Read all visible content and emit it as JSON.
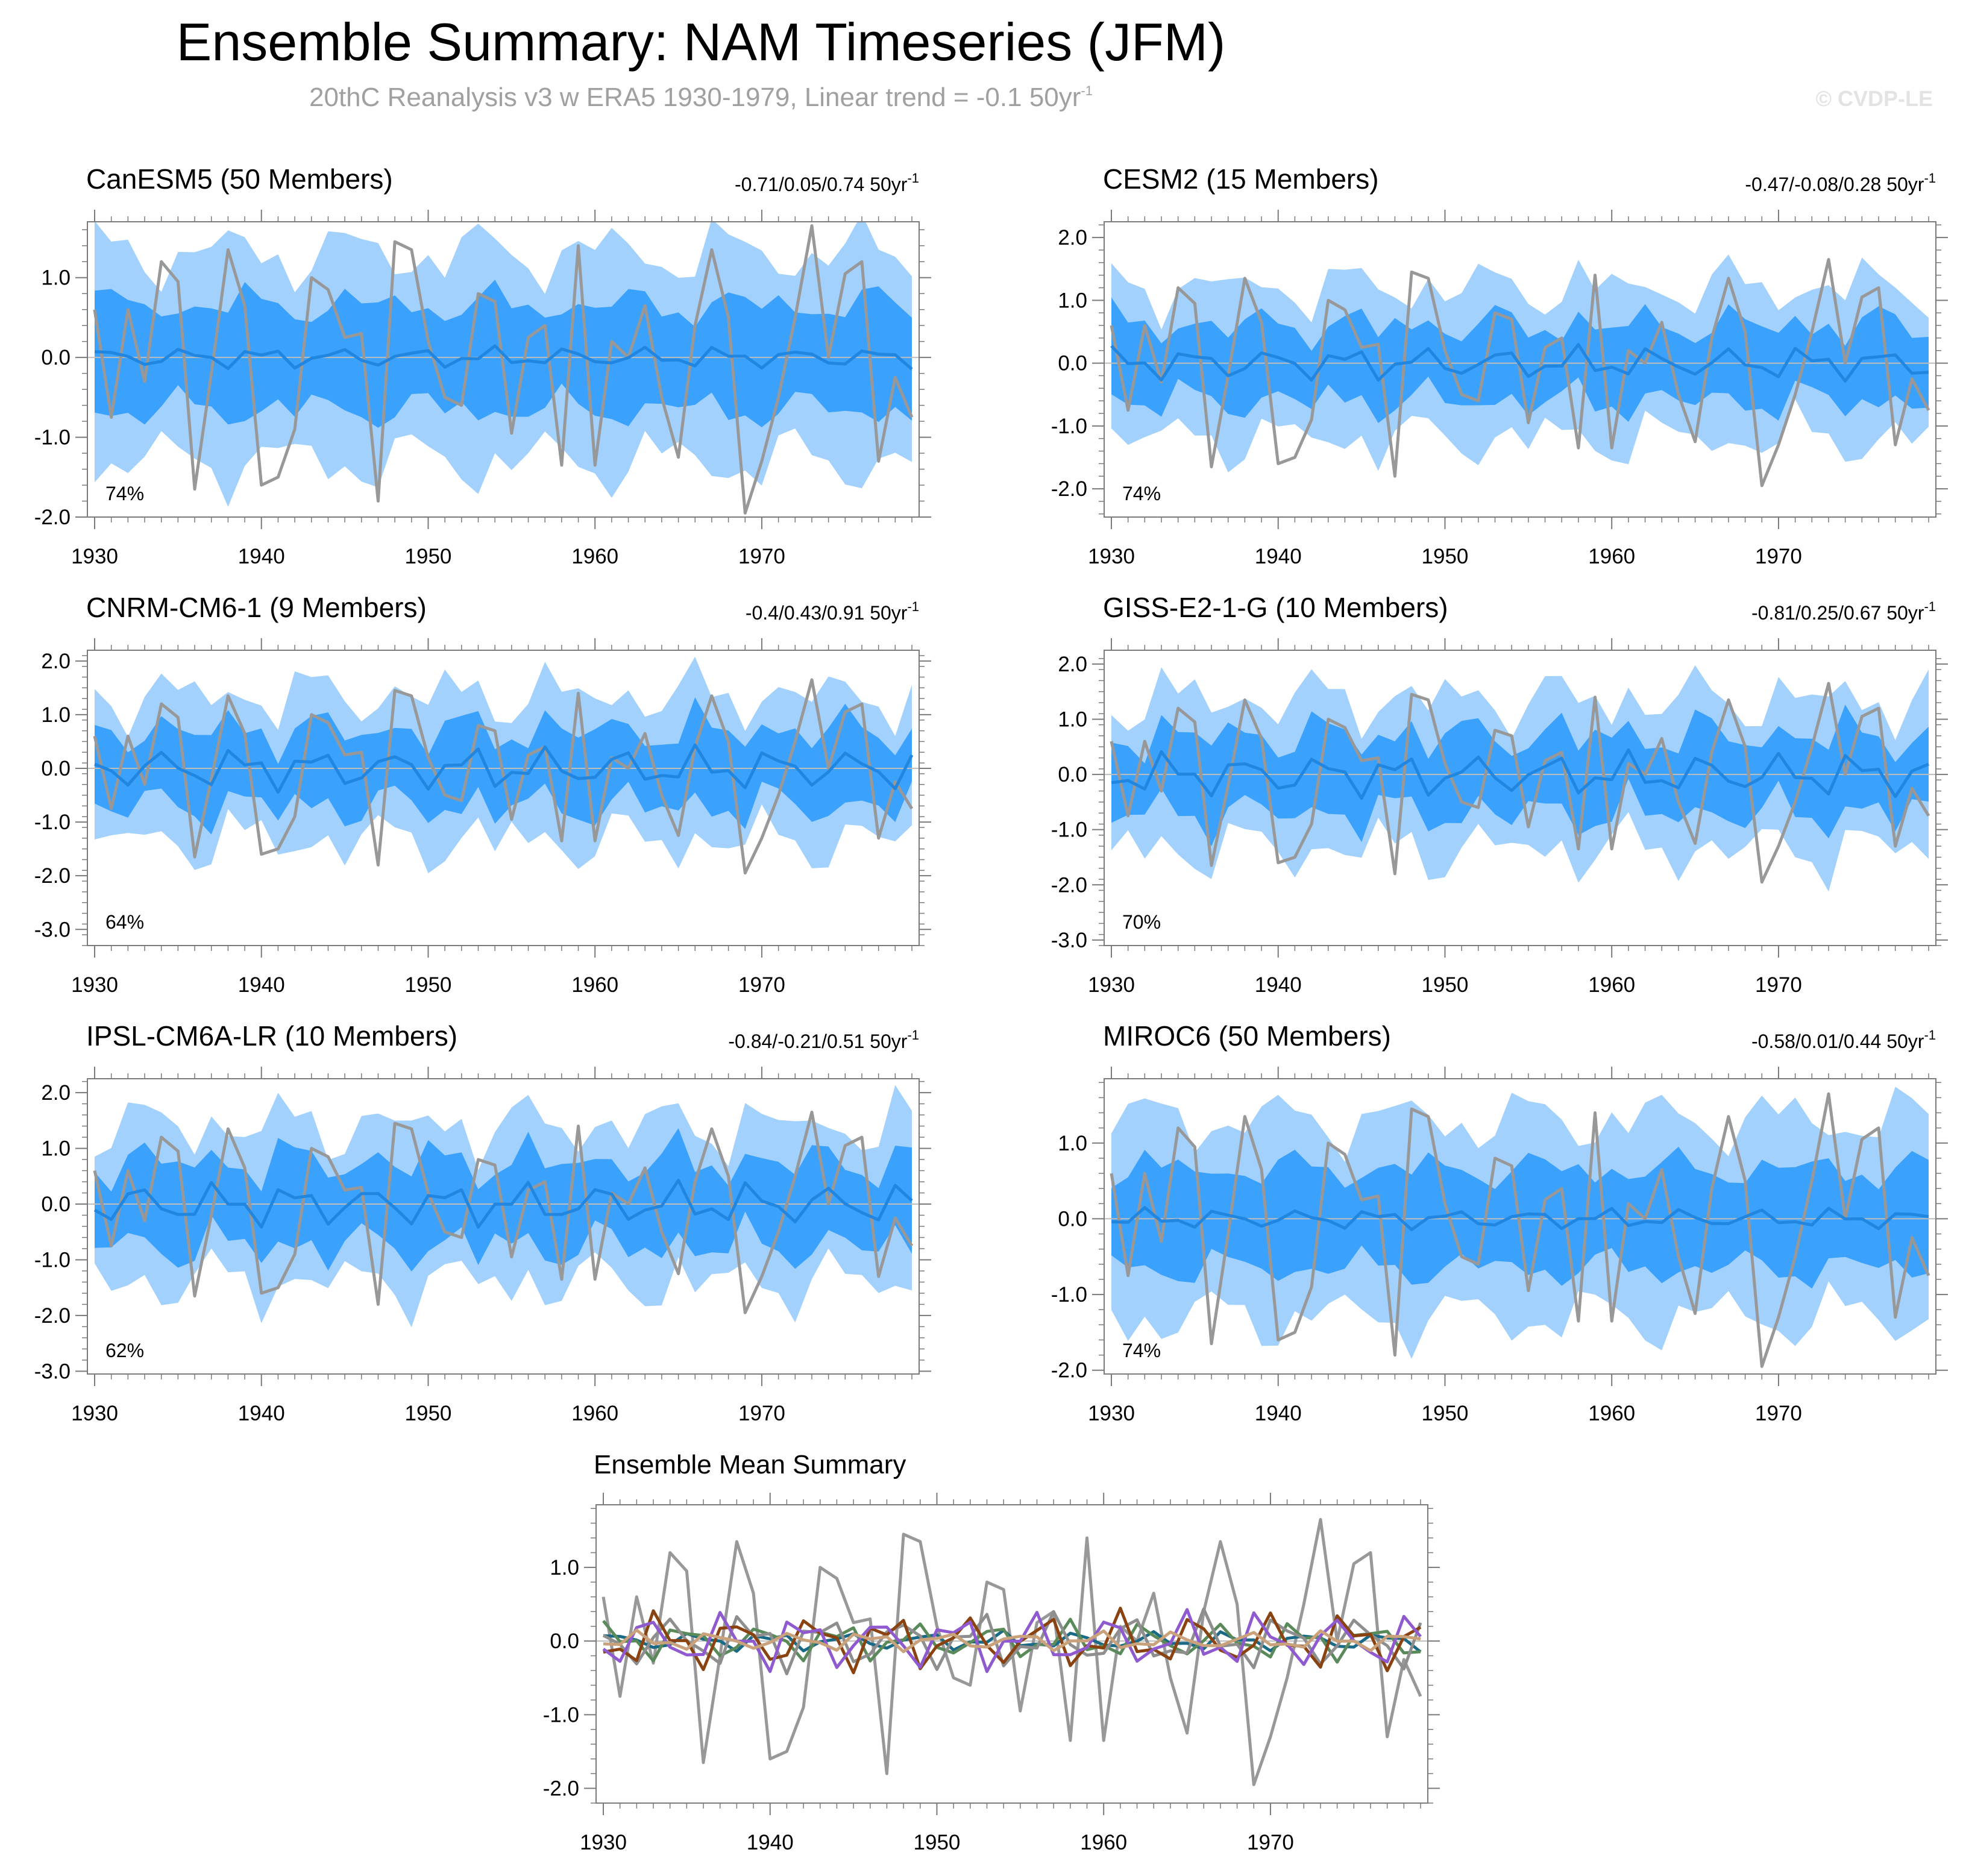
{
  "page": {
    "title": "Ensemble Summary: NAM Timeseries (JFM)",
    "subtitle_main": "20thC Reanalysis v3 w ERA5 1930-1979, Linear trend = -0.1 50yr",
    "subtitle_sup": "-1",
    "watermark": "© CVDP-LE"
  },
  "colors": {
    "band_outer": "#a3d1fd",
    "band_inner": "#3aa1fd",
    "ensemble_mean": "#2186e0",
    "observation": "#989898",
    "zero_line": "#bdbdbd",
    "frame": "#7a7a7a"
  },
  "chart_data": [
    {
      "type": "line",
      "id": "canesm5",
      "title": "CanESM5 (50 Members)",
      "title_color": "#1a6a86",
      "range_text": "-0.71/0.05/0.74 50yr",
      "range_sup": "-1",
      "percent_label": "74%",
      "ylim": [
        -2.0,
        1.7
      ],
      "yticks": [
        -2.0,
        -1.0,
        0.0,
        1.0
      ],
      "ytick_labels": [
        "-2.0",
        "-1.0",
        "0.0",
        "1.0"
      ],
      "xticks": [
        1930,
        1940,
        1950,
        1960,
        1970
      ],
      "xtick_labels": [
        "1930",
        "1940",
        "1950",
        "1960",
        "1970"
      ],
      "x_start": 1930,
      "x_end": 1979,
      "ens_amp": 0.15,
      "band_inner_width": 0.65,
      "band_outer_width": 1.3,
      "phase": 0.4
    },
    {
      "type": "line",
      "id": "cesm2",
      "title": "CESM2 (15 Members)",
      "title_color": "#5a8a5a",
      "range_text": "-0.47/-0.08/0.28 50yr",
      "range_sup": "-1",
      "percent_label": "74%",
      "ylim": [
        -2.45,
        2.25
      ],
      "yticks": [
        -2.0,
        -1.0,
        0.0,
        1.0,
        2.0
      ],
      "ytick_labels": [
        "-2.0",
        "-1.0",
        "0.0",
        "1.0",
        "2.0"
      ],
      "xticks": [
        1930,
        1940,
        1950,
        1960,
        1970
      ],
      "xtick_labels": [
        "1930",
        "1940",
        "1950",
        "1960",
        "1970"
      ],
      "x_start": 1930,
      "x_end": 1979,
      "ens_amp": 0.3,
      "band_inner_width": 0.6,
      "band_outer_width": 1.2,
      "phase": 1.1
    },
    {
      "type": "line",
      "id": "cnrm",
      "title": "CNRM-CM6-1 (9 Members)",
      "title_color": "#8e8e8e",
      "range_text": "-0.4/0.43/0.91 50yr",
      "range_sup": "-1",
      "percent_label": "64%",
      "ylim": [
        -3.3,
        2.2
      ],
      "yticks": [
        -3.0,
        -2.0,
        -1.0,
        0.0,
        1.0,
        2.0
      ],
      "ytick_labels": [
        "-3.0",
        "-2.0",
        "-1.0",
        "0.0",
        "1.0",
        "2.0"
      ],
      "xticks": [
        1930,
        1940,
        1950,
        1960,
        1970
      ],
      "xtick_labels": [
        "1930",
        "1940",
        "1950",
        "1960",
        "1970"
      ],
      "x_start": 1930,
      "x_end": 1979,
      "ens_amp": 0.45,
      "band_inner_width": 0.7,
      "band_outer_width": 1.35,
      "phase": 2.3
    },
    {
      "type": "line",
      "id": "giss",
      "title": "GISS-E2-1-G (10 Members)",
      "title_color": "#8a4210",
      "range_text": "-0.81/0.25/0.67 50yr",
      "range_sup": "-1",
      "percent_label": "70%",
      "ylim": [
        -3.1,
        2.25
      ],
      "yticks": [
        -3.0,
        -2.0,
        -1.0,
        0.0,
        1.0,
        2.0
      ],
      "ytick_labels": [
        "-3.0",
        "-2.0",
        "-1.0",
        "0.0",
        "1.0",
        "2.0"
      ],
      "xticks": [
        1930,
        1940,
        1950,
        1960,
        1970
      ],
      "xtick_labels": [
        "1930",
        "1940",
        "1950",
        "1960",
        "1970"
      ],
      "x_start": 1930,
      "x_end": 1979,
      "ens_amp": 0.45,
      "band_inner_width": 0.7,
      "band_outer_width": 1.35,
      "phase": 3.2
    },
    {
      "type": "line",
      "id": "ipsl",
      "title": "IPSL-CM6A-LR (10 Members)",
      "title_color": "#8f5ad0",
      "range_text": "-0.84/-0.21/0.51 50yr",
      "range_sup": "-1",
      "percent_label": "62%",
      "ylim": [
        -3.05,
        2.25
      ],
      "yticks": [
        -3.0,
        -2.0,
        -1.0,
        0.0,
        1.0,
        2.0
      ],
      "ytick_labels": [
        "-3.0",
        "-2.0",
        "-1.0",
        "0.0",
        "1.0",
        "2.0"
      ],
      "xticks": [
        1930,
        1940,
        1950,
        1960,
        1970
      ],
      "xtick_labels": [
        "1930",
        "1940",
        "1950",
        "1960",
        "1970"
      ],
      "x_start": 1930,
      "x_end": 1979,
      "ens_amp": 0.45,
      "band_inner_width": 0.75,
      "band_outer_width": 1.4,
      "phase": 4.1
    },
    {
      "type": "line",
      "id": "miroc6",
      "title": "MIROC6 (50 Members)",
      "title_color": "#c9a17a",
      "range_text": "-0.58/0.01/0.44 50yr",
      "range_sup": "-1",
      "percent_label": "74%",
      "ylim": [
        -2.05,
        1.85
      ],
      "yticks": [
        -2.0,
        -1.0,
        0.0,
        1.0
      ],
      "ytick_labels": [
        "-2.0",
        "-1.0",
        "0.0",
        "1.0"
      ],
      "xticks": [
        1930,
        1940,
        1950,
        1960,
        1970
      ],
      "xtick_labels": [
        "1930",
        "1940",
        "1950",
        "1960",
        "1970"
      ],
      "x_start": 1930,
      "x_end": 1979,
      "ens_amp": 0.15,
      "band_inner_width": 0.65,
      "band_outer_width": 1.3,
      "phase": 5.0
    },
    {
      "type": "line",
      "id": "summary",
      "title": "Ensemble Mean Summary",
      "ylim": [
        -2.2,
        1.85
      ],
      "yticks": [
        -2.0,
        -1.0,
        0.0,
        1.0
      ],
      "ytick_labels": [
        "-2.0",
        "-1.0",
        "0.0",
        "1.0"
      ],
      "xticks": [
        1930,
        1940,
        1950,
        1960,
        1970
      ],
      "xtick_labels": [
        "1930",
        "1940",
        "1950",
        "1960",
        "1970"
      ],
      "x_start": 1930,
      "x_end": 1979,
      "series": [
        {
          "name": "CanESM5",
          "color": "#1a6a86",
          "ens_amp": 0.15,
          "phase": 0.4
        },
        {
          "name": "CESM2",
          "color": "#5a8a5a",
          "ens_amp": 0.3,
          "phase": 1.1
        },
        {
          "name": "CNRM-CM6-1",
          "color": "#8e8e8e",
          "ens_amp": 0.45,
          "phase": 2.3
        },
        {
          "name": "GISS-E2-1-G",
          "color": "#8a4210",
          "ens_amp": 0.45,
          "phase": 3.2
        },
        {
          "name": "IPSL-CM6A-LR",
          "color": "#8f5ad0",
          "ens_amp": 0.45,
          "phase": 4.1
        },
        {
          "name": "MIROC6",
          "color": "#c9a17a",
          "ens_amp": 0.15,
          "phase": 5.0
        }
      ]
    }
  ],
  "observed": {
    "name": "20thC Reanalysis v3 w ERA5",
    "years": [
      1930,
      1931,
      1932,
      1933,
      1934,
      1935,
      1936,
      1937,
      1938,
      1939,
      1940,
      1941,
      1942,
      1943,
      1944,
      1945,
      1946,
      1947,
      1948,
      1949,
      1950,
      1951,
      1952,
      1953,
      1954,
      1955,
      1956,
      1957,
      1958,
      1959,
      1960,
      1961,
      1962,
      1963,
      1964,
      1965,
      1966,
      1967,
      1968,
      1969,
      1970,
      1971,
      1972,
      1973,
      1974,
      1975,
      1976,
      1977,
      1978,
      1979
    ],
    "values": [
      0.6,
      -0.75,
      0.6,
      -0.3,
      1.2,
      0.95,
      -1.65,
      -0.2,
      1.35,
      0.65,
      -1.6,
      -1.5,
      -0.9,
      1.0,
      0.85,
      0.25,
      0.3,
      -1.8,
      1.45,
      1.35,
      0.2,
      -0.5,
      -0.6,
      0.8,
      0.7,
      -0.95,
      0.25,
      0.4,
      -1.35,
      1.4,
      -1.35,
      0.2,
      0.0,
      0.65,
      -0.5,
      -1.25,
      0.4,
      1.35,
      0.5,
      -1.95,
      -1.3,
      -0.5,
      0.5,
      1.65,
      0.0,
      1.05,
      1.2,
      -1.3,
      -0.25,
      -0.75
    ]
  }
}
